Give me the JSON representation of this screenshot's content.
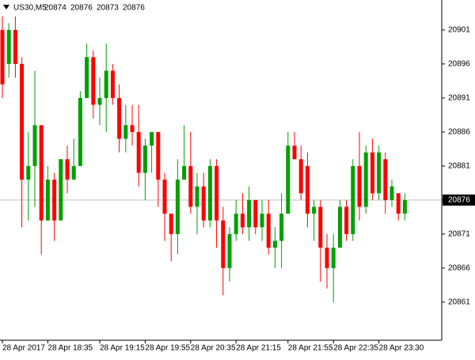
{
  "chart_data": {
    "type": "candlestick",
    "symbol": "US30,M5",
    "header_values": [
      20874,
      20876,
      20873,
      20876
    ],
    "categories": [
      "28 Apr 2017",
      null,
      null,
      null,
      null,
      null,
      null,
      "28 Apr 18:35",
      null,
      null,
      null,
      null,
      null,
      null,
      null,
      "28 Apr 19:15",
      null,
      null,
      null,
      null,
      null,
      null,
      "28 Apr 19:55",
      null,
      null,
      null,
      null,
      null,
      null,
      "28 Apr 20:35",
      null,
      null,
      null,
      null,
      null,
      null,
      "28 Apr 21:15",
      null,
      null,
      null,
      null,
      null,
      null,
      null,
      "28 Apr 21:55",
      null,
      null,
      null,
      null,
      null,
      null,
      "28 Apr 22:35",
      null,
      null,
      null,
      null,
      null,
      null,
      "28 Apr 23:30",
      null,
      null,
      null,
      null
    ],
    "open": [
      20901,
      20896,
      20901,
      20896,
      20879,
      20881,
      20887,
      20873,
      20879,
      20873,
      20882,
      20879,
      20881,
      20891,
      20897,
      20890,
      20891,
      20895,
      20891,
      20885,
      20887,
      20886,
      20880,
      20884,
      20886,
      20879,
      20874,
      20871,
      20879,
      20881,
      20875,
      20878,
      20873,
      20881,
      20873,
      20866,
      20871,
      20874,
      20872,
      20876,
      20872,
      20874,
      20869,
      20870,
      20874,
      20884,
      20882,
      20881,
      20874,
      20875,
      20869,
      20866,
      20869,
      20875,
      20871,
      20881,
      20875,
      20883,
      20877,
      20882,
      20876,
      20877,
      20874
    ],
    "high": [
      20903,
      20902,
      20903,
      20897,
      20886,
      20895,
      20887,
      20881,
      20880,
      20882,
      20884,
      20885,
      20892,
      20899,
      20898,
      20894,
      20899,
      20896,
      20893,
      20890,
      20890,
      20890,
      20885,
      20886,
      20886,
      20880,
      20874,
      20882,
      20887,
      20886,
      20880,
      20880,
      20882,
      20882,
      20875,
      20872,
      20876,
      20877,
      20878,
      20876,
      20876,
      20876,
      20872,
      20877,
      20886,
      20886,
      20884,
      20883,
      20876,
      20876,
      20871,
      20871,
      20876,
      20876,
      20882,
      20886,
      20884,
      20885,
      20884,
      20883,
      20879,
      20877,
      20877
    ],
    "low": [
      20891,
      20894,
      20894,
      20872,
      20873,
      20875,
      20868,
      20873,
      20870,
      20873,
      20877,
      20879,
      20881,
      20891,
      20888,
      20887,
      20886,
      20890,
      20883,
      20883,
      20884,
      20878,
      20876,
      20880,
      20875,
      20870,
      20867,
      20868,
      20879,
      20874,
      20871,
      20872,
      20872,
      20869,
      20862,
      20864,
      20870,
      20871,
      20870,
      20871,
      20870,
      20868,
      20866,
      20866,
      20874,
      20882,
      20876,
      20872,
      20870,
      20864,
      20863,
      20861,
      20869,
      20870,
      20870,
      20873,
      20874,
      20876,
      20876,
      20874,
      20875,
      20873,
      20873
    ],
    "close": [
      20893,
      20901,
      20896,
      20879,
      20881,
      20887,
      20873,
      20879,
      20873,
      20882,
      20879,
      20881,
      20891,
      20897,
      20890,
      20891,
      20895,
      20891,
      20885,
      20887,
      20886,
      20880,
      20884,
      20886,
      20879,
      20874,
      20871,
      20879,
      20881,
      20875,
      20878,
      20873,
      20881,
      20873,
      20866,
      20871,
      20874,
      20872,
      20876,
      20872,
      20874,
      20869,
      20870,
      20874,
      20884,
      20882,
      20877,
      20874,
      20875,
      20869,
      20866,
      20869,
      20875,
      20871,
      20881,
      20875,
      20883,
      20877,
      20883,
      20876,
      20878,
      20874,
      20876
    ],
    "up_color": "#00a000",
    "down_color": "#ff0000",
    "current_price": 20876,
    "ylim": [
      20855.4,
      20905.4
    ],
    "yticks": [
      20861,
      20866,
      20871,
      20876,
      20881,
      20886,
      20891,
      20896,
      20901
    ]
  }
}
